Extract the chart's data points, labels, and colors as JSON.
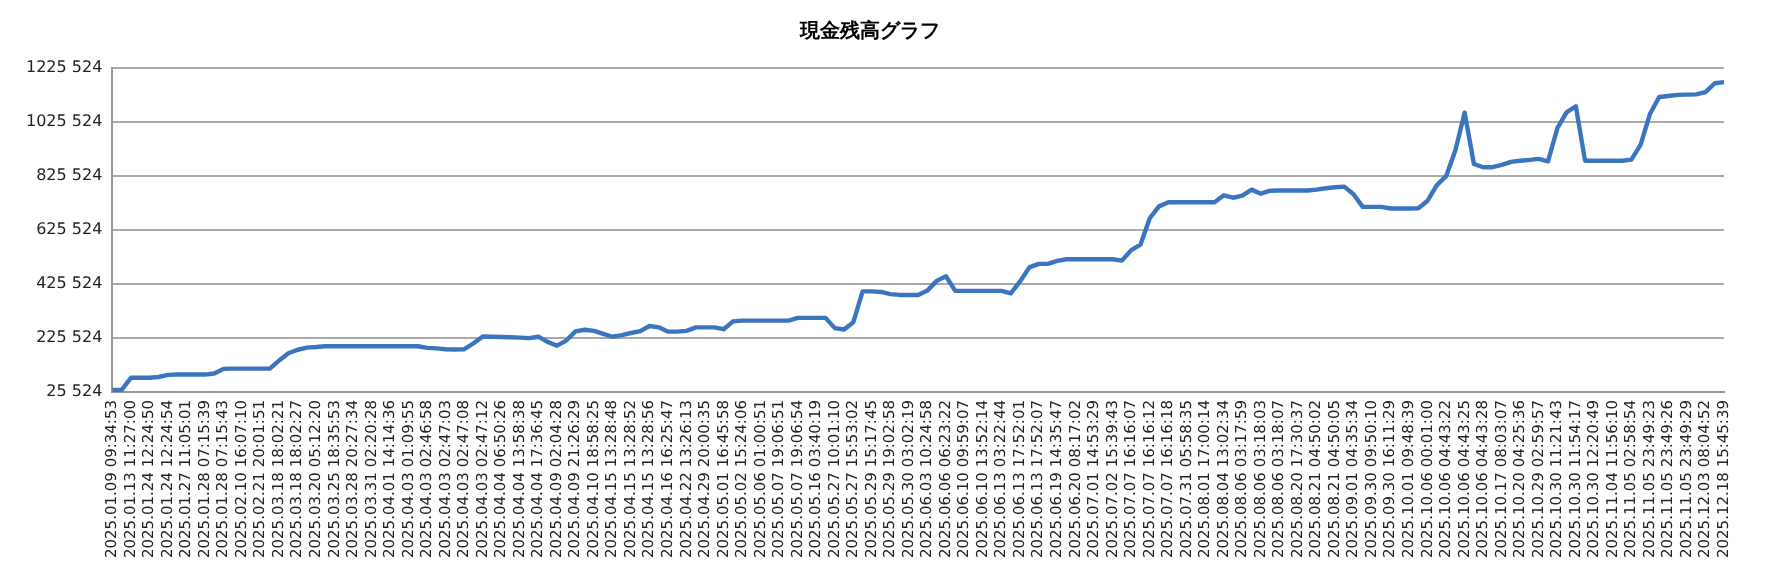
{
  "chart_data": {
    "type": "line",
    "title": "現金残高グラフ",
    "categories": [
      "2025.01.09 09:34:53",
      null,
      "2025.01.13 11:27:00",
      null,
      "2025.01.24 12:24:50",
      null,
      "2025.01.24 12:24:54",
      null,
      "2025.01.27 11:05:01",
      null,
      "2025.01.28 07:15:39",
      null,
      "2025.01.28 07:15:43",
      null,
      "2025.02.10 16:07:10",
      null,
      "2025.02.21 20:01:51",
      null,
      "2025.03.18 18:02:21",
      null,
      "2025.03.18 18:02:27",
      null,
      "2025.03.20 05:12:20",
      null,
      "2025.03.25 18:35:53",
      null,
      "2025.03.28 20:27:34",
      null,
      "2025.03.31 02:20:28",
      null,
      "2025.04.01 14:14:36",
      null,
      "2025.04.03 01:09:55",
      null,
      "2025.04.03 02:46:58",
      null,
      "2025.04.03 02:47:03",
      null,
      "2025.04.03 02:47:08",
      null,
      "2025.04.03 02:47:12",
      null,
      "2025.04.04 06:50:26",
      null,
      "2025.04.04 13:58:38",
      null,
      "2025.04.04 17:36:45",
      null,
      "2025.04.09 02:04:28",
      null,
      "2025.04.09 21:26:29",
      null,
      "2025.04.10 18:58:25",
      null,
      "2025.04.15 13:28:48",
      null,
      "2025.04.15 13:28:52",
      null,
      "2025.04.15 13:28:56",
      null,
      "2025.04.16 16:25:47",
      null,
      "2025.04.22 13:26:13",
      null,
      "2025.04.29 20:00:35",
      null,
      "2025.05.01 16:45:58",
      null,
      "2025.05.02 15:24:06",
      null,
      "2025.05.06 01:00:51",
      null,
      "2025.05.07 19:06:51",
      null,
      "2025.05.07 19:06:54",
      null,
      "2025.05.16 03:40:19",
      null,
      "2025.05.27 10:01:10",
      null,
      "2025.05.27 15:53:02",
      null,
      "2025.05.29 15:17:45",
      null,
      "2025.05.29 19:02:58",
      null,
      "2025.05.30 03:02:19",
      null,
      "2025.06.03 10:24:58",
      null,
      "2025.06.06 06:23:22",
      null,
      "2025.06.10 09:59:07",
      null,
      "2025.06.10 13:52:14",
      null,
      "2025.06.13 03:22:44",
      null,
      "2025.06.13 17:52:01",
      null,
      "2025.06.13 17:52:07",
      null,
      "2025.06.19 14:35:47",
      null,
      "2025.06.20 08:17:02",
      null,
      "2025.07.01 14:53:29",
      null,
      "2025.07.02 15:39:43",
      null,
      "2025.07.07 16:16:07",
      null,
      "2025.07.07 16:16:12",
      null,
      "2025.07.07 16:16:18",
      null,
      "2025.07.31 05:58:35",
      null,
      "2025.08.01 17:00:14",
      null,
      "2025.08.04 13:02:34",
      null,
      "2025.08.06 03:17:59",
      null,
      "2025.08.06 03:18:03",
      null,
      "2025.08.06 03:18:07",
      null,
      "2025.08.20 17:30:37",
      null,
      "2025.08.21 04:50:02",
      null,
      "2025.08.21 04:50:05",
      null,
      "2025.09.01 04:35:34",
      null,
      "2025.09.30 09:50:10",
      null,
      "2025.09.30 16:11:29",
      null,
      "2025.10.01 09:48:39",
      null,
      "2025.10.06 00:01:00",
      null,
      "2025.10.06 04:43:22",
      null,
      "2025.10.06 04:43:25",
      null,
      "2025.10.06 04:43:28",
      null,
      "2025.10.17 08:03:07",
      null,
      "2025.10.20 04:25:36",
      null,
      "2025.10.29 02:59:57",
      null,
      "2025.10.30 11:21:43",
      null,
      "2025.10.30 11:54:17",
      null,
      "2025.10.30 12:20:49",
      null,
      "2025.11.04 11:56:10",
      null,
      "2025.11.05 02:58:54",
      null,
      "2025.11.05 23:49:23",
      null,
      "2025.11.05 23:49:26",
      null,
      "2025.11.05 23:49:29",
      null,
      "2025.12.03 08:04:52",
      null,
      "2025.12.18 15:45:39"
    ],
    "series": [
      {
        "color": "#3b75c0",
        "values": [
          33000,
          33000,
          78000,
          78000,
          78000,
          81000,
          89000,
          90000,
          90000,
          90000,
          90000,
          94000,
          111000,
          112000,
          112000,
          112000,
          112000,
          112000,
          142000,
          169000,
          182000,
          190000,
          192000,
          195000,
          195000,
          195000,
          195000,
          195000,
          195000,
          195000,
          195000,
          195000,
          195000,
          195000,
          189000,
          187000,
          184000,
          183000,
          184000,
          206000,
          231000,
          230000,
          229000,
          228000,
          227000,
          225000,
          230000,
          211000,
          197000,
          216000,
          250000,
          256000,
          252000,
          241000,
          230000,
          236000,
          244000,
          251000,
          270000,
          265000,
          249000,
          249000,
          252000,
          265000,
          265000,
          265000,
          258000,
          287000,
          290000,
          290000,
          290000,
          290000,
          290000,
          290000,
          300000,
          300000,
          300000,
          300000,
          262000,
          257000,
          284000,
          398000,
          398000,
          396000,
          388000,
          385000,
          385000,
          385000,
          401000,
          437000,
          454000,
          400000,
          400000,
          400000,
          400000,
          400000,
          400000,
          391000,
          435000,
          487000,
          500000,
          500000,
          511000,
          517000,
          517000,
          517000,
          517000,
          517000,
          517000,
          512000,
          551000,
          571000,
          669000,
          713000,
          728000,
          728000,
          728000,
          728000,
          728000,
          728000,
          754000,
          745000,
          753000,
          775000,
          760000,
          771000,
          772000,
          772000,
          772000,
          772000,
          775000,
          780000,
          784000,
          786000,
          758000,
          711000,
          711000,
          711000,
          705000,
          705000,
          705000,
          706000,
          734000,
          792000,
          825000,
          921000,
          1060000,
          870000,
          858000,
          858000,
          867000,
          878000,
          882000,
          885000,
          889000,
          880000,
          1002000,
          1061000,
          1084000,
          882000,
          882000,
          882000,
          882000,
          882000,
          886000,
          942000,
          1055000,
          1118000,
          1122000,
          1126000,
          1127000,
          1128000,
          1136000,
          1169000,
          1173000
        ]
      }
    ],
    "ylim": [
      25524,
      1225524
    ],
    "yticks": [
      {
        "value": 25524,
        "label": "25 524"
      },
      {
        "value": 225524,
        "label": "225 524"
      },
      {
        "value": 425524,
        "label": "425 524"
      },
      {
        "value": 625524,
        "label": "625 524"
      },
      {
        "value": 825524,
        "label": "825 524"
      },
      {
        "value": 1025524,
        "label": "1025 524"
      },
      {
        "value": 1225524,
        "label": "1225 524"
      }
    ],
    "grid": "y",
    "legend": false,
    "marker": "none",
    "line_style": "solid"
  }
}
